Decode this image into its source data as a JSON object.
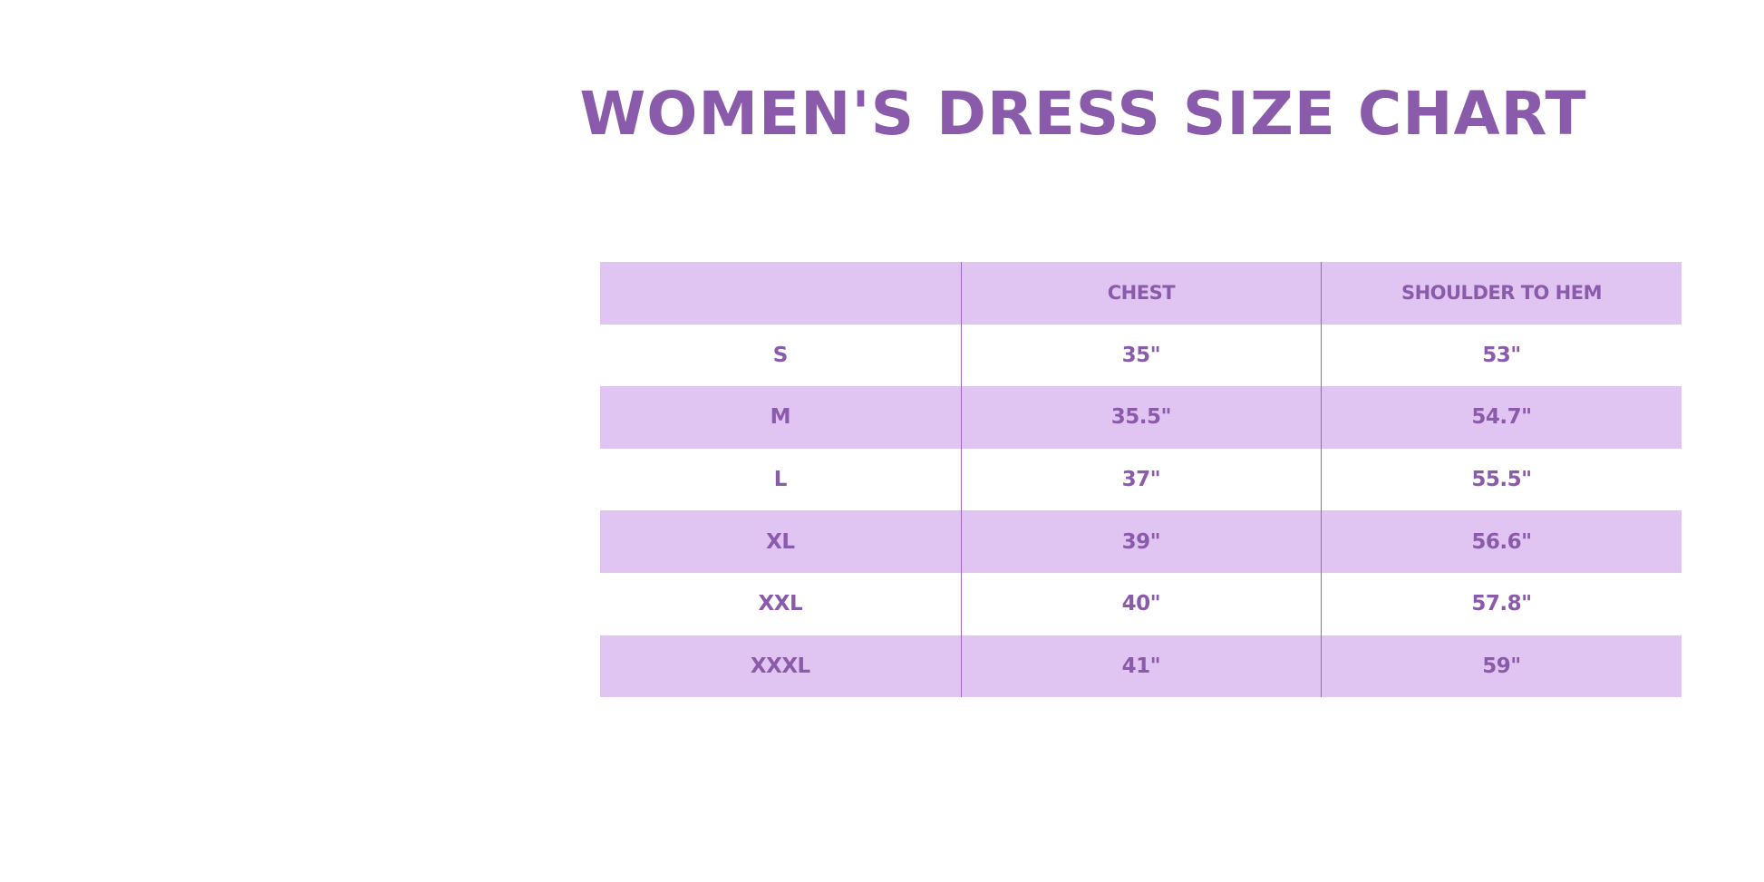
{
  "title": "WOMEN'S DRESS SIZE CHART",
  "colors": {
    "accent": "#8a5aab",
    "row_shade": "#e0c5f3"
  },
  "table": {
    "headers": [
      "",
      "CHEST",
      "SHOULDER TO HEM"
    ],
    "rows": [
      [
        "S",
        "35\"",
        "53\""
      ],
      [
        "M",
        "35.5\"",
        "54.7\""
      ],
      [
        "L",
        "37\"",
        "55.5\""
      ],
      [
        "XL",
        "39\"",
        "56.6\""
      ],
      [
        "XXL",
        "40\"",
        "57.8\""
      ],
      [
        "XXXL",
        "41\"",
        "59\""
      ]
    ]
  }
}
